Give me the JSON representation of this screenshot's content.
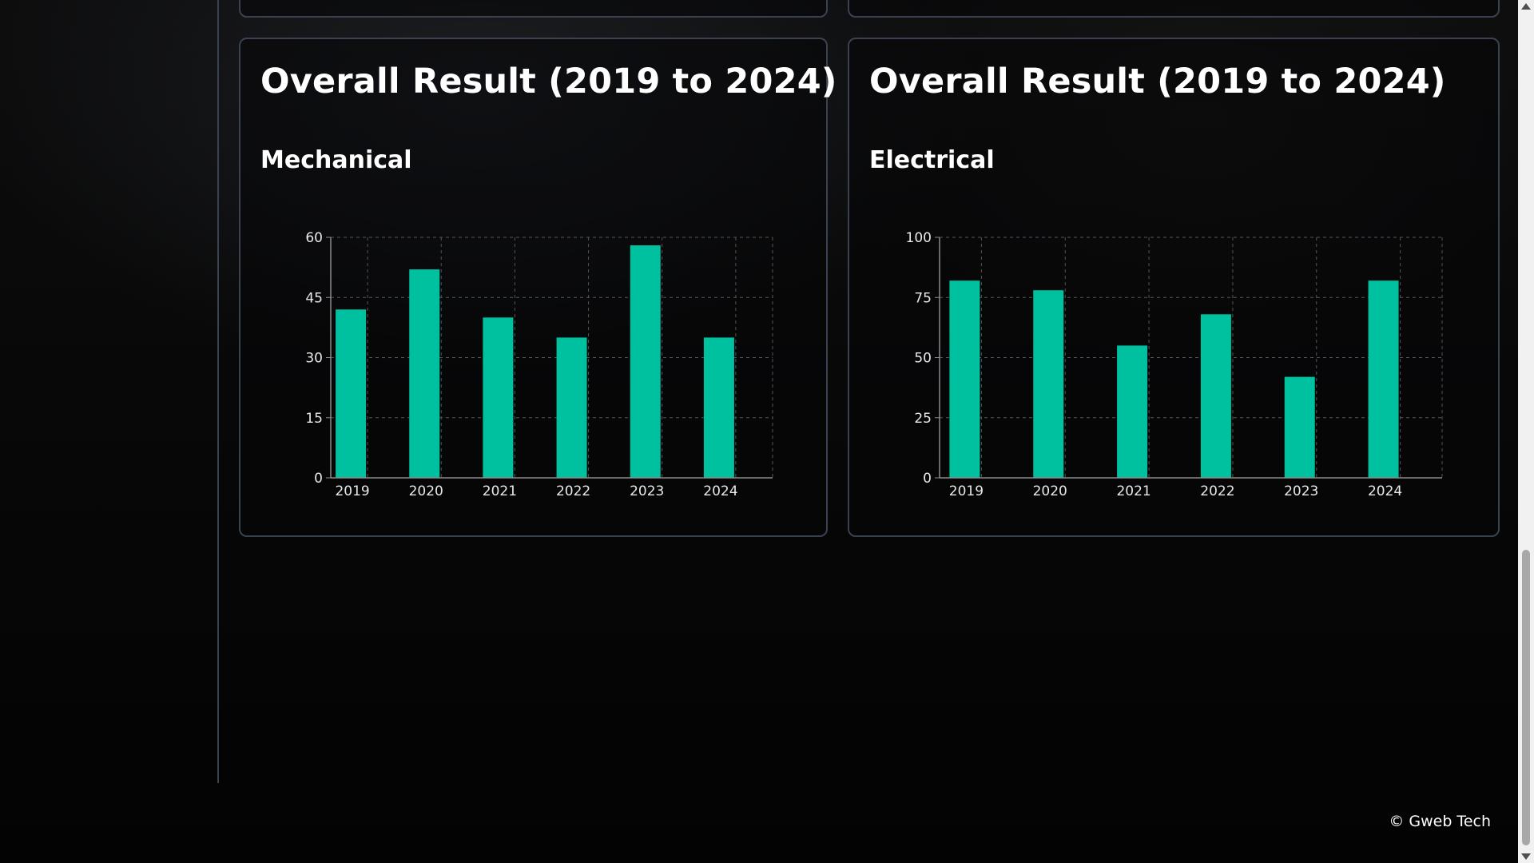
{
  "colors": {
    "bar": "#00c19f",
    "grid": "#555555",
    "axis": "#8a8a8a",
    "card_border": "#3a4252"
  },
  "cards": [
    {
      "title": "Overall Result (2019 to 2024)",
      "subtitle": "Mechanical",
      "chart_data": {
        "type": "bar",
        "categories": [
          "2019",
          "2020",
          "2021",
          "2022",
          "2023",
          "2024"
        ],
        "values": [
          42,
          52,
          40,
          35,
          58,
          35
        ],
        "ylim": [
          0,
          60
        ],
        "yticks": [
          "0",
          "15",
          "30",
          "45",
          "60"
        ],
        "grid": true,
        "xlabel": "",
        "ylabel": ""
      }
    },
    {
      "title": "Overall Result (2019 to 2024)",
      "subtitle": "Electrical",
      "chart_data": {
        "type": "bar",
        "categories": [
          "2019",
          "2020",
          "2021",
          "2022",
          "2023",
          "2024"
        ],
        "values": [
          82,
          78,
          55,
          68,
          42,
          82
        ],
        "ylim": [
          0,
          100
        ],
        "yticks": [
          "0",
          "25",
          "50",
          "75",
          "100"
        ],
        "grid": true,
        "xlabel": "",
        "ylabel": ""
      }
    }
  ],
  "footer": {
    "copyright": "© Gweb Tech"
  }
}
